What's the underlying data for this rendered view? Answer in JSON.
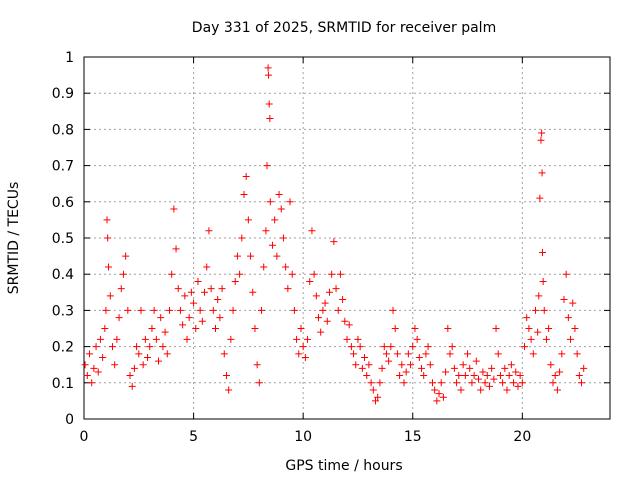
{
  "chart_data": {
    "type": "scatter",
    "title": "Day 331 of 2025, SRMTID for receiver palm",
    "xlabel": "GPS time / hours",
    "ylabel": "SRMTID / TECUs",
    "xlim": [
      0,
      24
    ],
    "ylim": [
      0,
      1
    ],
    "xticks": [
      0,
      5,
      10,
      15,
      20
    ],
    "yticks": [
      0,
      0.1,
      0.2,
      0.3,
      0.4,
      0.5,
      0.6,
      0.7,
      0.8,
      0.9,
      1
    ],
    "ytick_labels": [
      "0",
      "0.1",
      "0.2",
      "0.3",
      "0.4",
      "0.5",
      "0.6",
      "0.7",
      "0.8",
      "0.9",
      "1"
    ],
    "grid": true,
    "marker": "+",
    "marker_color": "#ff0000",
    "series": [
      {
        "name": "SRMTID",
        "points": [
          [
            0.05,
            0.15
          ],
          [
            0.15,
            0.12
          ],
          [
            0.25,
            0.18
          ],
          [
            0.35,
            0.1
          ],
          [
            0.45,
            0.14
          ],
          [
            0.55,
            0.2
          ],
          [
            0.65,
            0.13
          ],
          [
            0.75,
            0.22
          ],
          [
            0.85,
            0.17
          ],
          [
            0.95,
            0.25
          ],
          [
            1.0,
            0.3
          ],
          [
            1.05,
            0.55
          ],
          [
            1.08,
            0.5
          ],
          [
            1.12,
            0.42
          ],
          [
            1.2,
            0.34
          ],
          [
            1.3,
            0.2
          ],
          [
            1.4,
            0.15
          ],
          [
            1.5,
            0.22
          ],
          [
            1.6,
            0.28
          ],
          [
            1.7,
            0.36
          ],
          [
            1.8,
            0.4
          ],
          [
            1.9,
            0.45
          ],
          [
            2.0,
            0.3
          ],
          [
            2.1,
            0.12
          ],
          [
            2.2,
            0.09
          ],
          [
            2.3,
            0.14
          ],
          [
            2.4,
            0.2
          ],
          [
            2.5,
            0.18
          ],
          [
            2.6,
            0.3
          ],
          [
            2.7,
            0.15
          ],
          [
            2.8,
            0.22
          ],
          [
            2.9,
            0.17
          ],
          [
            3.0,
            0.2
          ],
          [
            3.1,
            0.25
          ],
          [
            3.2,
            0.3
          ],
          [
            3.3,
            0.22
          ],
          [
            3.4,
            0.16
          ],
          [
            3.5,
            0.28
          ],
          [
            3.6,
            0.2
          ],
          [
            3.7,
            0.24
          ],
          [
            3.8,
            0.18
          ],
          [
            3.9,
            0.3
          ],
          [
            4.0,
            0.4
          ],
          [
            4.1,
            0.58
          ],
          [
            4.2,
            0.47
          ],
          [
            4.3,
            0.36
          ],
          [
            4.4,
            0.3
          ],
          [
            4.5,
            0.26
          ],
          [
            4.6,
            0.34
          ],
          [
            4.7,
            0.22
          ],
          [
            4.8,
            0.28
          ],
          [
            4.9,
            0.35
          ],
          [
            5.0,
            0.32
          ],
          [
            5.1,
            0.25
          ],
          [
            5.2,
            0.38
          ],
          [
            5.3,
            0.3
          ],
          [
            5.4,
            0.27
          ],
          [
            5.5,
            0.35
          ],
          [
            5.6,
            0.42
          ],
          [
            5.7,
            0.52
          ],
          [
            5.8,
            0.36
          ],
          [
            5.9,
            0.3
          ],
          [
            6.0,
            0.25
          ],
          [
            6.1,
            0.33
          ],
          [
            6.2,
            0.28
          ],
          [
            6.3,
            0.36
          ],
          [
            6.4,
            0.18
          ],
          [
            6.5,
            0.12
          ],
          [
            6.6,
            0.08
          ],
          [
            6.7,
            0.22
          ],
          [
            6.8,
            0.3
          ],
          [
            6.9,
            0.38
          ],
          [
            7.0,
            0.45
          ],
          [
            7.1,
            0.4
          ],
          [
            7.2,
            0.5
          ],
          [
            7.3,
            0.62
          ],
          [
            7.4,
            0.67
          ],
          [
            7.5,
            0.55
          ],
          [
            7.6,
            0.45
          ],
          [
            7.7,
            0.35
          ],
          [
            7.8,
            0.25
          ],
          [
            7.9,
            0.15
          ],
          [
            8.0,
            0.1
          ],
          [
            8.1,
            0.3
          ],
          [
            8.2,
            0.42
          ],
          [
            8.3,
            0.52
          ],
          [
            8.35,
            0.7
          ],
          [
            8.4,
            0.97
          ],
          [
            8.42,
            0.95
          ],
          [
            8.45,
            0.87
          ],
          [
            8.48,
            0.83
          ],
          [
            8.5,
            0.6
          ],
          [
            8.6,
            0.48
          ],
          [
            8.7,
            0.55
          ],
          [
            8.8,
            0.45
          ],
          [
            8.9,
            0.62
          ],
          [
            9.0,
            0.58
          ],
          [
            9.1,
            0.5
          ],
          [
            9.2,
            0.42
          ],
          [
            9.3,
            0.36
          ],
          [
            9.4,
            0.6
          ],
          [
            9.5,
            0.4
          ],
          [
            9.6,
            0.3
          ],
          [
            9.7,
            0.22
          ],
          [
            9.8,
            0.18
          ],
          [
            9.9,
            0.25
          ],
          [
            10.0,
            0.2
          ],
          [
            10.1,
            0.17
          ],
          [
            10.2,
            0.22
          ],
          [
            10.3,
            0.38
          ],
          [
            10.4,
            0.52
          ],
          [
            10.5,
            0.4
          ],
          [
            10.6,
            0.34
          ],
          [
            10.7,
            0.28
          ],
          [
            10.8,
            0.24
          ],
          [
            10.9,
            0.3
          ],
          [
            11.0,
            0.32
          ],
          [
            11.1,
            0.27
          ],
          [
            11.2,
            0.35
          ],
          [
            11.3,
            0.4
          ],
          [
            11.4,
            0.49
          ],
          [
            11.5,
            0.36
          ],
          [
            11.6,
            0.3
          ],
          [
            11.7,
            0.4
          ],
          [
            11.8,
            0.33
          ],
          [
            11.9,
            0.27
          ],
          [
            12.0,
            0.22
          ],
          [
            12.1,
            0.26
          ],
          [
            12.2,
            0.2
          ],
          [
            12.3,
            0.18
          ],
          [
            12.4,
            0.15
          ],
          [
            12.5,
            0.22
          ],
          [
            12.6,
            0.2
          ],
          [
            12.7,
            0.14
          ],
          [
            12.8,
            0.17
          ],
          [
            12.9,
            0.12
          ],
          [
            13.0,
            0.15
          ],
          [
            13.1,
            0.1
          ],
          [
            13.2,
            0.08
          ],
          [
            13.3,
            0.05
          ],
          [
            13.4,
            0.06
          ],
          [
            13.5,
            0.1
          ],
          [
            13.6,
            0.14
          ],
          [
            13.7,
            0.2
          ],
          [
            13.8,
            0.18
          ],
          [
            13.9,
            0.16
          ],
          [
            14.0,
            0.2
          ],
          [
            14.1,
            0.3
          ],
          [
            14.2,
            0.25
          ],
          [
            14.3,
            0.18
          ],
          [
            14.4,
            0.12
          ],
          [
            14.5,
            0.15
          ],
          [
            14.6,
            0.1
          ],
          [
            14.7,
            0.13
          ],
          [
            14.8,
            0.18
          ],
          [
            14.9,
            0.15
          ],
          [
            15.0,
            0.2
          ],
          [
            15.1,
            0.25
          ],
          [
            15.2,
            0.22
          ],
          [
            15.3,
            0.17
          ],
          [
            15.4,
            0.14
          ],
          [
            15.5,
            0.12
          ],
          [
            15.6,
            0.18
          ],
          [
            15.7,
            0.2
          ],
          [
            15.8,
            0.15
          ],
          [
            15.9,
            0.1
          ],
          [
            16.0,
            0.08
          ],
          [
            16.1,
            0.05
          ],
          [
            16.2,
            0.07
          ],
          [
            16.3,
            0.1
          ],
          [
            16.4,
            0.06
          ],
          [
            16.5,
            0.13
          ],
          [
            16.6,
            0.25
          ],
          [
            16.7,
            0.18
          ],
          [
            16.8,
            0.2
          ],
          [
            16.9,
            0.14
          ],
          [
            17.0,
            0.1
          ],
          [
            17.1,
            0.12
          ],
          [
            17.2,
            0.08
          ],
          [
            17.3,
            0.15
          ],
          [
            17.4,
            0.12
          ],
          [
            17.5,
            0.18
          ],
          [
            17.6,
            0.14
          ],
          [
            17.7,
            0.1
          ],
          [
            17.8,
            0.12
          ],
          [
            17.9,
            0.16
          ],
          [
            18.0,
            0.11
          ],
          [
            18.1,
            0.08
          ],
          [
            18.2,
            0.13
          ],
          [
            18.3,
            0.1
          ],
          [
            18.4,
            0.12
          ],
          [
            18.5,
            0.09
          ],
          [
            18.6,
            0.14
          ],
          [
            18.7,
            0.11
          ],
          [
            18.8,
            0.25
          ],
          [
            18.9,
            0.18
          ],
          [
            19.0,
            0.12
          ],
          [
            19.1,
            0.1
          ],
          [
            19.2,
            0.14
          ],
          [
            19.3,
            0.08
          ],
          [
            19.4,
            0.12
          ],
          [
            19.5,
            0.15
          ],
          [
            19.6,
            0.1
          ],
          [
            19.7,
            0.13
          ],
          [
            19.8,
            0.09
          ],
          [
            19.9,
            0.12
          ],
          [
            20.0,
            0.1
          ],
          [
            20.1,
            0.2
          ],
          [
            20.2,
            0.28
          ],
          [
            20.3,
            0.25
          ],
          [
            20.4,
            0.22
          ],
          [
            20.5,
            0.18
          ],
          [
            20.6,
            0.3
          ],
          [
            20.7,
            0.24
          ],
          [
            20.75,
            0.34
          ],
          [
            20.8,
            0.61
          ],
          [
            20.85,
            0.77
          ],
          [
            20.88,
            0.79
          ],
          [
            20.9,
            0.68
          ],
          [
            20.92,
            0.46
          ],
          [
            20.95,
            0.38
          ],
          [
            21.0,
            0.3
          ],
          [
            21.1,
            0.22
          ],
          [
            21.2,
            0.25
          ],
          [
            21.3,
            0.15
          ],
          [
            21.4,
            0.1
          ],
          [
            21.5,
            0.12
          ],
          [
            21.6,
            0.08
          ],
          [
            21.7,
            0.13
          ],
          [
            21.8,
            0.18
          ],
          [
            21.9,
            0.33
          ],
          [
            22.0,
            0.4
          ],
          [
            22.1,
            0.28
          ],
          [
            22.2,
            0.22
          ],
          [
            22.3,
            0.32
          ],
          [
            22.4,
            0.25
          ],
          [
            22.5,
            0.18
          ],
          [
            22.6,
            0.12
          ],
          [
            22.7,
            0.1
          ],
          [
            22.8,
            0.14
          ]
        ]
      }
    ]
  }
}
